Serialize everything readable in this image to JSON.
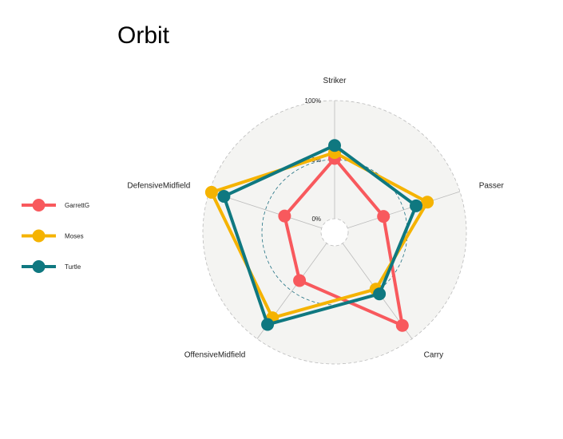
{
  "chart_data": {
    "type": "radar",
    "title": "Orbit",
    "axes": [
      "Striker",
      "Passer",
      "Carry",
      "OffensiveMidfield",
      "DefensiveMidfield"
    ],
    "grid_labels": [
      "0%",
      "50%",
      "100%"
    ],
    "ylim": [
      0,
      1
    ],
    "legend_position": "left",
    "series": [
      {
        "name": "GarrettG",
        "color": "#F8595D",
        "values": [
          0.51,
          0.32,
          0.86,
          0.39,
          0.33
        ]
      },
      {
        "name": "Moses",
        "color": "#F5B301",
        "values": [
          0.56,
          0.71,
          0.48,
          0.78,
          0.98
        ]
      },
      {
        "name": "Turtle",
        "color": "#0F7880",
        "values": [
          0.62,
          0.61,
          0.53,
          0.85,
          0.87
        ]
      }
    ],
    "colors": {
      "background_fill": "#F4F4F2",
      "grid_line": "#BBBBBB",
      "mid_grid_line": "#1F7082",
      "axis_line": "#BBBBBB"
    }
  }
}
